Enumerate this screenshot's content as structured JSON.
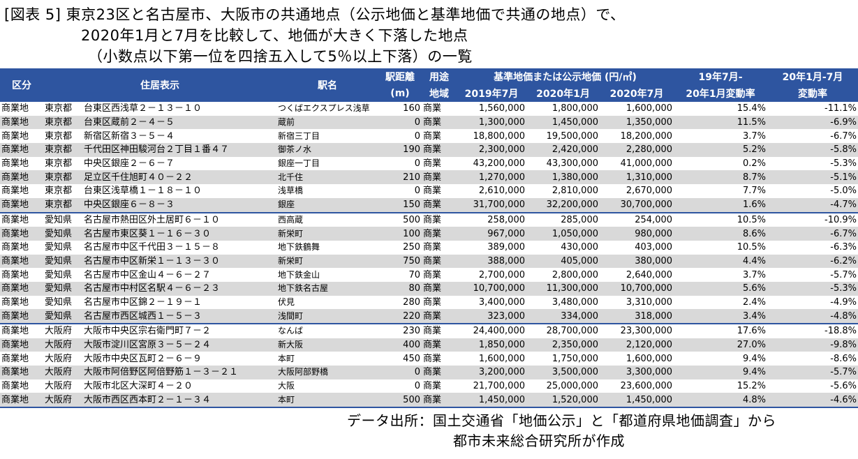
{
  "title": {
    "line1": "[図表 5]  東京23区と名古屋市、大阪市の共通地点（公示地価と基準地価で共通の地点）で、",
    "line2": "2020年1月と7月を比較して、地価が大きく下落した地点",
    "line3": "（小数点以下第一位を四捨五入して5％以上下落）の一覧"
  },
  "header": {
    "kubun": "区分",
    "address": "住居表示",
    "station": "駅名",
    "distance_1": "駅距離",
    "distance_2": "(m)",
    "use_1": "用途",
    "use_2": "地域",
    "price_group": "基準地価または公示地価 (円/㎡)",
    "p2019_7": "2019年7月",
    "p2020_1": "2020年1月",
    "p2020_7": "2020年7月",
    "chg1_1": "19年7月-",
    "chg1_2": "20年1月変動率",
    "chg2_1": "20年1月-7月",
    "chg2_2": "変動率"
  },
  "rows": [
    {
      "kubun": "商業地",
      "pref": "東京都",
      "addr": "台東区西浅草２－１３－１０",
      "station": "つくばエクスプレス浅草",
      "dist": "160",
      "use": "商業",
      "p1": "1,560,000",
      "p2": "1,800,000",
      "p3": "1,600,000",
      "c1": "15.4%",
      "c2": "-11.1%"
    },
    {
      "kubun": "商業地",
      "pref": "東京都",
      "addr": "台東区蔵前２－４－５",
      "station": "蔵前",
      "dist": "0",
      "use": "商業",
      "p1": "1,300,000",
      "p2": "1,450,000",
      "p3": "1,350,000",
      "c1": "11.5%",
      "c2": "-6.9%"
    },
    {
      "kubun": "商業地",
      "pref": "東京都",
      "addr": "新宿区新宿３－５－４",
      "station": "新宿三丁目",
      "dist": "0",
      "use": "商業",
      "p1": "18,800,000",
      "p2": "19,500,000",
      "p3": "18,200,000",
      "c1": "3.7%",
      "c2": "-6.7%"
    },
    {
      "kubun": "商業地",
      "pref": "東京都",
      "addr": "千代田区神田駿河台２丁目１番４７",
      "station": "御茶ノ水",
      "dist": "190",
      "use": "商業",
      "p1": "2,300,000",
      "p2": "2,420,000",
      "p3": "2,280,000",
      "c1": "5.2%",
      "c2": "-5.8%"
    },
    {
      "kubun": "商業地",
      "pref": "東京都",
      "addr": "中央区銀座２－６－７",
      "station": "銀座一丁目",
      "dist": "0",
      "use": "商業",
      "p1": "43,200,000",
      "p2": "43,300,000",
      "p3": "41,000,000",
      "c1": "0.2%",
      "c2": "-5.3%"
    },
    {
      "kubun": "商業地",
      "pref": "東京都",
      "addr": "足立区千住旭町４０－２２",
      "station": "北千住",
      "dist": "210",
      "use": "商業",
      "p1": "1,270,000",
      "p2": "1,380,000",
      "p3": "1,310,000",
      "c1": "8.7%",
      "c2": "-5.1%"
    },
    {
      "kubun": "商業地",
      "pref": "東京都",
      "addr": "台東区浅草橋１－１８－１０",
      "station": "浅草橋",
      "dist": "0",
      "use": "商業",
      "p1": "2,610,000",
      "p2": "2,810,000",
      "p3": "2,670,000",
      "c1": "7.7%",
      "c2": "-5.0%"
    },
    {
      "kubun": "商業地",
      "pref": "東京都",
      "addr": "中央区銀座６－８－３",
      "station": "銀座",
      "dist": "150",
      "use": "商業",
      "p1": "31,700,000",
      "p2": "32,200,000",
      "p3": "30,700,000",
      "c1": "1.6%",
      "c2": "-4.7%"
    },
    {
      "kubun": "商業地",
      "pref": "愛知県",
      "addr": "名古屋市熱田区外土居町６－１０",
      "station": "西高蔵",
      "dist": "500",
      "use": "商業",
      "p1": "258,000",
      "p2": "285,000",
      "p3": "254,000",
      "c1": "10.5%",
      "c2": "-10.9%",
      "group_start": true
    },
    {
      "kubun": "商業地",
      "pref": "愛知県",
      "addr": "名古屋市東区葵１－１６－３０",
      "station": "新栄町",
      "dist": "100",
      "use": "商業",
      "p1": "967,000",
      "p2": "1,050,000",
      "p3": "980,000",
      "c1": "8.6%",
      "c2": "-6.7%"
    },
    {
      "kubun": "商業地",
      "pref": "愛知県",
      "addr": "名古屋市中区千代田３－１５－８",
      "station": "地下鉄鶴舞",
      "dist": "250",
      "use": "商業",
      "p1": "389,000",
      "p2": "430,000",
      "p3": "403,000",
      "c1": "10.5%",
      "c2": "-6.3%"
    },
    {
      "kubun": "商業地",
      "pref": "愛知県",
      "addr": "名古屋市中区新栄１－１３－３０",
      "station": "新栄町",
      "dist": "750",
      "use": "商業",
      "p1": "388,000",
      "p2": "405,000",
      "p3": "380,000",
      "c1": "4.4%",
      "c2": "-6.2%"
    },
    {
      "kubun": "商業地",
      "pref": "愛知県",
      "addr": "名古屋市中区金山４－６－２７",
      "station": "地下鉄金山",
      "dist": "70",
      "use": "商業",
      "p1": "2,700,000",
      "p2": "2,800,000",
      "p3": "2,640,000",
      "c1": "3.7%",
      "c2": "-5.7%"
    },
    {
      "kubun": "商業地",
      "pref": "愛知県",
      "addr": "名古屋市中村区名駅４－６－２３",
      "station": "地下鉄名古屋",
      "dist": "80",
      "use": "商業",
      "p1": "10,700,000",
      "p2": "11,300,000",
      "p3": "10,700,000",
      "c1": "5.6%",
      "c2": "-5.3%"
    },
    {
      "kubun": "商業地",
      "pref": "愛知県",
      "addr": "名古屋市中区錦２－１９－１",
      "station": "伏見",
      "dist": "280",
      "use": "商業",
      "p1": "3,400,000",
      "p2": "3,480,000",
      "p3": "3,310,000",
      "c1": "2.4%",
      "c2": "-4.9%"
    },
    {
      "kubun": "商業地",
      "pref": "愛知県",
      "addr": "名古屋市西区城西１－５－３",
      "station": "浅間町",
      "dist": "220",
      "use": "商業",
      "p1": "323,000",
      "p2": "334,000",
      "p3": "318,000",
      "c1": "3.4%",
      "c2": "-4.8%"
    },
    {
      "kubun": "商業地",
      "pref": "大阪府",
      "addr": "大阪市中央区宗右衛門町７－２",
      "station": "なんば",
      "dist": "230",
      "use": "商業",
      "p1": "24,400,000",
      "p2": "28,700,000",
      "p3": "23,300,000",
      "c1": "17.6%",
      "c2": "-18.8%",
      "group_start": true
    },
    {
      "kubun": "商業地",
      "pref": "大阪府",
      "addr": "大阪市淀川区宮原３－５－２４",
      "station": "新大阪",
      "dist": "400",
      "use": "商業",
      "p1": "1,850,000",
      "p2": "2,350,000",
      "p3": "2,120,000",
      "c1": "27.0%",
      "c2": "-9.8%"
    },
    {
      "kubun": "商業地",
      "pref": "大阪府",
      "addr": "大阪市中央区瓦町２－６－９",
      "station": "本町",
      "dist": "450",
      "use": "商業",
      "p1": "1,600,000",
      "p2": "1,750,000",
      "p3": "1,600,000",
      "c1": "9.4%",
      "c2": "-8.6%"
    },
    {
      "kubun": "商業地",
      "pref": "大阪府",
      "addr": "大阪市阿倍野区阿倍野筋１－３－２１",
      "station": "大阪阿部野橋",
      "dist": "0",
      "use": "商業",
      "p1": "3,200,000",
      "p2": "3,500,000",
      "p3": "3,300,000",
      "c1": "9.4%",
      "c2": "-5.7%"
    },
    {
      "kubun": "商業地",
      "pref": "大阪府",
      "addr": "大阪市北区大深町４－２０",
      "station": "大阪",
      "dist": "0",
      "use": "商業",
      "p1": "21,700,000",
      "p2": "25,000,000",
      "p3": "23,600,000",
      "c1": "15.2%",
      "c2": "-5.6%"
    },
    {
      "kubun": "商業地",
      "pref": "大阪府",
      "addr": "大阪市西区西本町２－１－３４",
      "station": "本町",
      "dist": "500",
      "use": "商業",
      "p1": "1,450,000",
      "p2": "1,520,000",
      "p3": "1,450,000",
      "c1": "4.8%",
      "c2": "-4.6%"
    }
  ],
  "source": {
    "line1": "データ出所：国土交通省「地価公示」と「都道府県地価調査」から",
    "line2": "都市未来総合研究所が作成"
  },
  "colors": {
    "header_bg": "#2e55a0",
    "stripe": "#d9d9d9"
  }
}
